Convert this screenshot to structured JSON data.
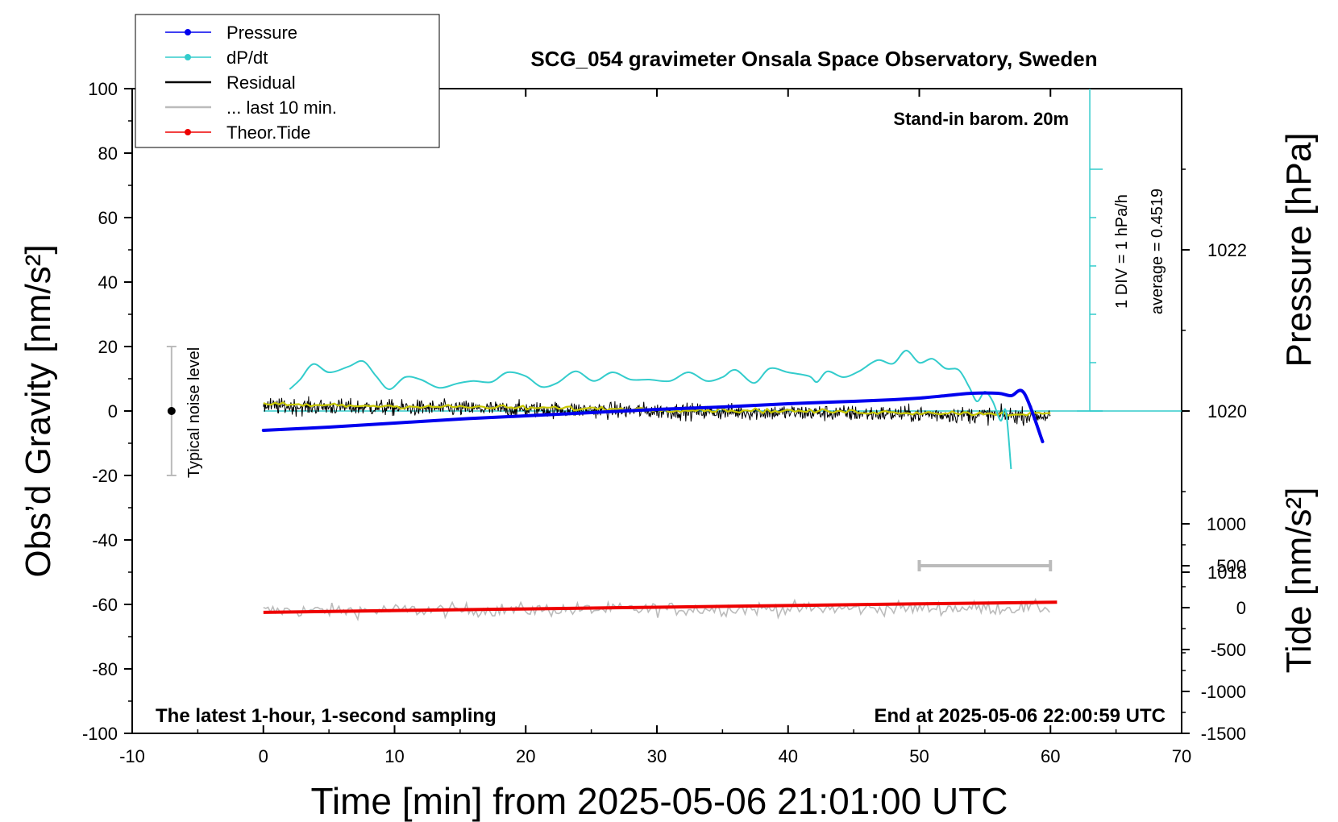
{
  "chart_data": {
    "type": "line",
    "title": "SCG_054 gravimeter Onsala Space Observatory, Sweden",
    "xlabel": "Time [min] from 2025-05-06 21:01:00 UTC",
    "ylabel_left": "Obs’d Gravity [nm/s²]",
    "ylabel_right_pressure": "Pressure [hPa]",
    "ylabel_right_tide": "Tide [nm/s²]",
    "xlim": [
      -10,
      70
    ],
    "ylim": [
      -100,
      100
    ],
    "x_ticks": [
      "-10",
      "0",
      "10",
      "20",
      "30",
      "40",
      "50",
      "60",
      "70"
    ],
    "y_ticks": [
      "100",
      "80",
      "60",
      "40",
      "20",
      "0",
      "-20",
      "-40",
      "-60",
      "-80",
      "-100"
    ],
    "pressure_ticks": [
      "1022",
      "1020",
      "1018"
    ],
    "pressure_tick_values": [
      1022,
      1020,
      1018
    ],
    "pressure_axis_range": [
      1016,
      1024
    ],
    "tide_ticks": [
      "1000",
      "500",
      "0",
      "-500",
      "-1000",
      "-1500"
    ],
    "tide_tick_values": [
      1000,
      500,
      0,
      -500,
      -1000,
      -1500
    ],
    "tide_axis_range": [
      -1500,
      1500
    ],
    "legend_position": "top-left",
    "legend": [
      {
        "label": "Pressure",
        "color": "#0000ee",
        "marker": true
      },
      {
        "label": "dP/dt",
        "color": "#33cccc",
        "marker": true
      },
      {
        "label": "Residual",
        "color": "#000000",
        "marker": false
      },
      {
        "label": "... last 10 min.",
        "color": "#bbbbbb",
        "marker": false
      },
      {
        "label": "Theor.Tide",
        "color": "#ee0000",
        "marker": true
      }
    ],
    "annotations": {
      "stand_in": "Stand-in barom. 20m",
      "div_label": "1 DIV = 1 hPa/h",
      "average_label": "average = 0.4519",
      "noise_label": "Typical noise level",
      "latest_label": "The latest 1-hour, 1-second sampling",
      "end_label": "End at 2025-05-06 22:00:59 UTC"
    },
    "noise_bar": {
      "x": -7,
      "y_center": 0,
      "y_range": [
        -20,
        20
      ]
    },
    "last10_bar": {
      "x_range": [
        50,
        60
      ]
    },
    "series": [
      {
        "name": "Pressure",
        "unit": "hPa",
        "color": "#0000ee",
        "x": [
          0,
          5,
          10,
          15,
          20,
          25,
          30,
          35,
          40,
          45,
          48,
          50,
          52,
          54,
          56,
          57,
          58,
          59.4
        ],
        "values": [
          1019.76,
          1019.8,
          1019.85,
          1019.9,
          1019.94,
          1019.98,
          1020.02,
          1020.05,
          1020.09,
          1020.12,
          1020.14,
          1020.16,
          1020.19,
          1020.22,
          1020.22,
          1020.19,
          1020.22,
          1019.62
        ]
      },
      {
        "name": "dP/dt",
        "unit": "hPa/h",
        "color": "#33cccc",
        "x": [
          2,
          2.8,
          3.8,
          5,
          6.5,
          7.6,
          8.6,
          9.6,
          10.8,
          12,
          13.4,
          14.8,
          16,
          17.4,
          18.6,
          20,
          21.2,
          22.4,
          23.8,
          25.2,
          26.6,
          28,
          29.4,
          31,
          32.4,
          33.8,
          35,
          36,
          37.4,
          38.6,
          40,
          41.6,
          42.2,
          43,
          44.2,
          45.4,
          46.8,
          48,
          49,
          50,
          51,
          52,
          53,
          53.8,
          54.4,
          55,
          55.6,
          56.2,
          56.6,
          57
        ],
        "values": [
          0.45,
          0.65,
          0.97,
          0.8,
          0.92,
          1.03,
          0.72,
          0.45,
          0.7,
          0.65,
          0.48,
          0.57,
          0.62,
          0.6,
          0.8,
          0.72,
          0.5,
          0.58,
          0.82,
          0.62,
          0.8,
          0.65,
          0.65,
          0.62,
          0.8,
          0.62,
          0.7,
          0.85,
          0.58,
          0.88,
          0.8,
          0.72,
          0.6,
          0.82,
          0.7,
          0.82,
          1.05,
          0.98,
          1.25,
          1.0,
          1.08,
          0.88,
          0.85,
          0.5,
          0.2,
          0.4,
          0.2,
          -0.2,
          0.0,
          -1.2
        ]
      },
      {
        "name": "Residual",
        "unit": "nm/s²",
        "color": "#000000",
        "x": [
          0,
          60
        ],
        "values": [
          1.5,
          -1.5
        ],
        "noise_amplitude": 3
      },
      {
        "name": "... last 10 min.",
        "unit": "nm/s²",
        "color": "#c8c800",
        "x": [
          0,
          60
        ],
        "values": [
          2.0,
          -1.0
        ]
      },
      {
        "name": "Theor.Tide",
        "unit": "nm/s²",
        "color": "#ee0000",
        "x": [
          0,
          10,
          20,
          30,
          40,
          50,
          60.5
        ],
        "values": [
          -57,
          -35,
          -15,
          5,
          25,
          45,
          65
        ]
      },
      {
        "name": "Tide residual (grey)",
        "unit": "nm/s²",
        "color": "#bbbbbb",
        "x": [
          0,
          60
        ],
        "values": [
          -62,
          -61
        ],
        "noise_amplitude": 2.5
      }
    ]
  }
}
